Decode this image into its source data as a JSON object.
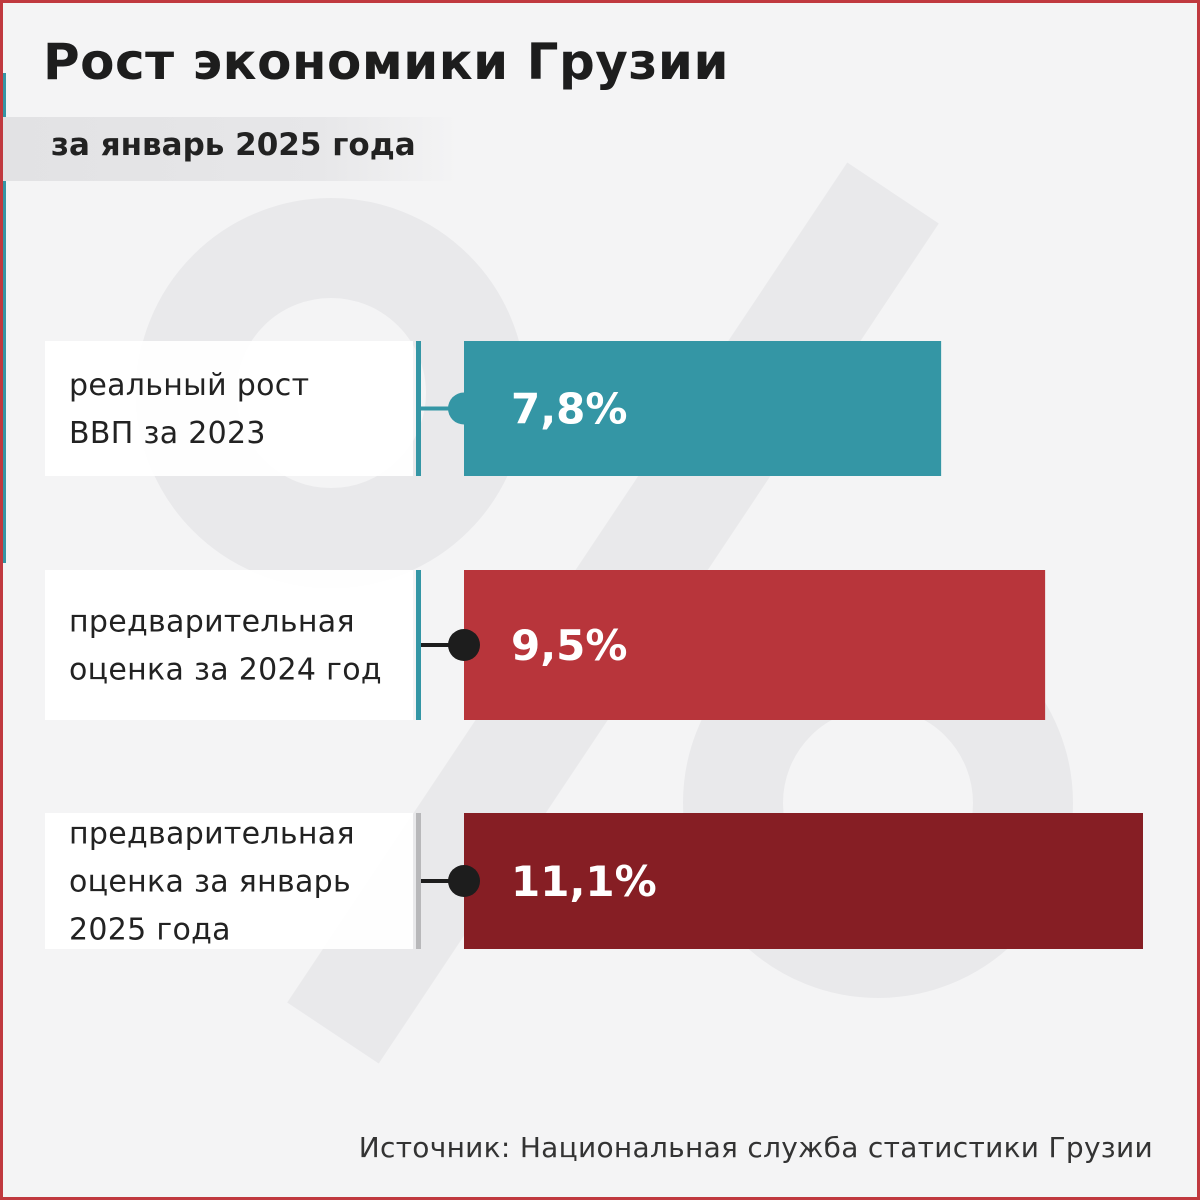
{
  "header": {
    "title": "Рост экономики Грузии",
    "subtitle": "за январь 2025 года"
  },
  "source": "Источник: Национальная служба статистики Грузии",
  "colors": {
    "background": "#f4f4f5",
    "teal": "#3496a5",
    "red": "#b8353b",
    "dark_red": "#861e24",
    "frame": "#c0393f"
  },
  "chart_data": {
    "type": "bar",
    "orientation": "horizontal",
    "categories": [
      [
        "реальный рост",
        "ВВП за 2023"
      ],
      [
        "предварительная",
        "оценка за 2024 год"
      ],
      [
        "предварительная",
        "оценка за январь",
        "2025 года"
      ]
    ],
    "values": [
      7.8,
      9.5,
      11.1
    ],
    "data_labels": [
      "7,8%",
      "9,5%",
      "11,1%"
    ],
    "bar_colors": [
      "#3496a5",
      "#b8353b",
      "#861e24"
    ],
    "unit": "%",
    "xlim": [
      0,
      11.1
    ]
  }
}
